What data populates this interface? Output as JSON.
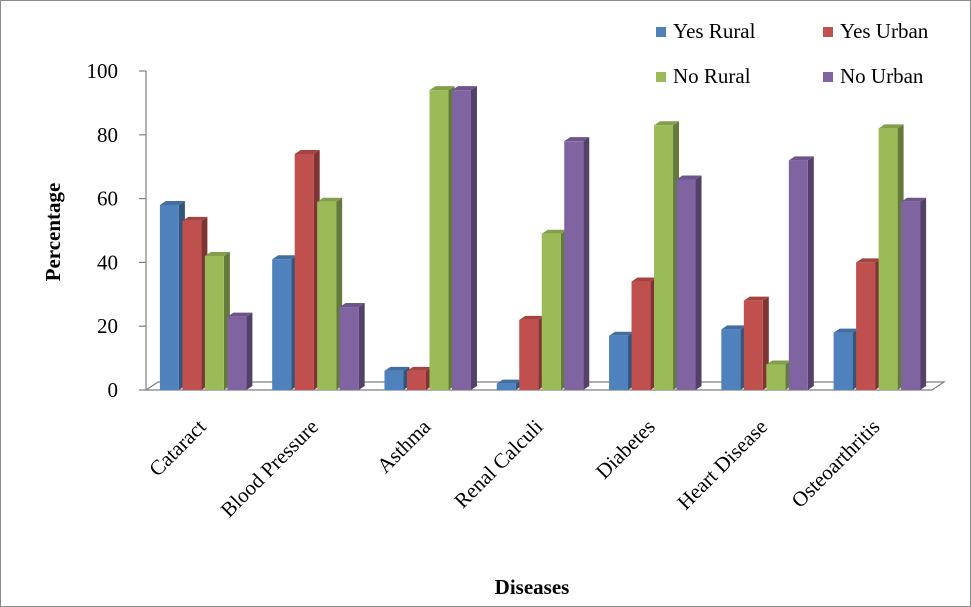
{
  "chart_data": {
    "type": "bar",
    "title": "",
    "xlabel": "Diseases",
    "ylabel": "Percentage",
    "ylim": [
      0,
      100
    ],
    "yticks": [
      0,
      20,
      40,
      60,
      80,
      100
    ],
    "grid": false,
    "legend_position": "top-right",
    "categories": [
      "Cataract",
      "Blood Pressure",
      "Asthma",
      "Renal Calculi",
      "Diabetes",
      "Heart Disease",
      "Osteoarthritis"
    ],
    "series": [
      {
        "name": "Yes Rural",
        "color": "#4F81BD",
        "values": [
          58,
          41,
          6,
          2,
          17,
          19,
          18
        ]
      },
      {
        "name": "Yes Urban",
        "color": "#C0504D",
        "values": [
          53,
          74,
          6,
          22,
          34,
          28,
          40
        ]
      },
      {
        "name": "No Rural",
        "color": "#9BBB59",
        "values": [
          42,
          59,
          94,
          49,
          83,
          8,
          82
        ]
      },
      {
        "name": "No Urban",
        "color": "#8064A2",
        "values": [
          23,
          26,
          94,
          78,
          66,
          72,
          59
        ]
      }
    ]
  }
}
